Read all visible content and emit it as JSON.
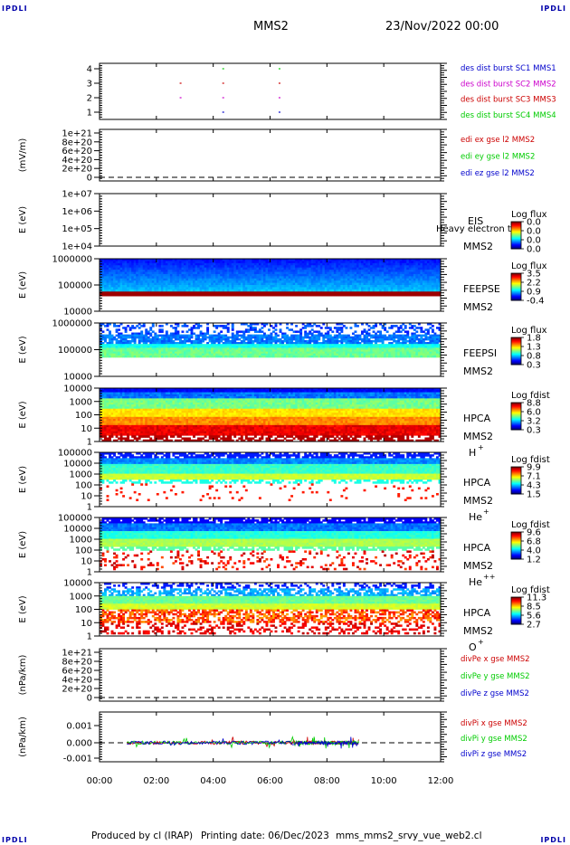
{
  "corner_label": "IPDLI",
  "header": {
    "mission": "MMS2",
    "date": "23/Nov/2022 00:00"
  },
  "footer": {
    "producer": "Produced by cl (IRAP)",
    "printing": "Printing date: 06/Dec/2023",
    "file": "mms_mms2_srvy_vue_web2.cl"
  },
  "time_axis": {
    "ticks": [
      "00:00",
      "02:00",
      "04:00",
      "06:00",
      "08:00",
      "10:00",
      "12:00"
    ]
  },
  "colors": {
    "blue": "#0000cc",
    "magenta": "#cc00cc",
    "red": "#cc0000",
    "green": "#00cc00"
  },
  "chart_data": [
    {
      "type": "scatter",
      "id": "burst",
      "yticks": [
        "4",
        "3",
        "2",
        "1"
      ],
      "legend": [
        {
          "text": "des dist burst SC1 MMS1",
          "color": "#0000cc"
        },
        {
          "text": "des dist burst SC2 MMS2",
          "color": "#cc00cc"
        },
        {
          "text": "des dist burst SC3 MMS3",
          "color": "#cc0000"
        },
        {
          "text": "des dist burst SC4 MMS4",
          "color": "#00cc00"
        }
      ]
    },
    {
      "type": "line",
      "id": "edi",
      "ylabel": "(mV/m)",
      "yticks": [
        "1e+21",
        "8e+20",
        "6e+20",
        "4e+20",
        "2e+20",
        "0"
      ],
      "legend": [
        {
          "text": "edi ex gse l2 MMS2",
          "color": "#cc0000"
        },
        {
          "text": "edi ey gse l2 MMS2",
          "color": "#00cc00"
        },
        {
          "text": "edi ez gse l2 MMS2",
          "color": "#0000cc"
        }
      ]
    },
    {
      "type": "heatmap",
      "id": "eis",
      "ylabel": "E (eV)",
      "yticks": [
        "1e+07",
        "1e+06",
        "1e+05",
        "1e+04"
      ],
      "instrument": "EIS",
      "extra": "Heavy electron to",
      "sc": "MMS2",
      "cbar_title": "Log flux",
      "cbar_ticks": [
        "0.0",
        "0.0",
        "0.0",
        "0.0"
      ]
    },
    {
      "type": "heatmap",
      "id": "feepse",
      "ylabel": "E (eV)",
      "yticks": [
        "1000000",
        "100000",
        "10000"
      ],
      "instrument": "FEEPSE",
      "sc": "MMS2",
      "cbar_title": "Log flux",
      "cbar_ticks": [
        "3.5",
        "2.2",
        "0.9",
        "-0.4"
      ]
    },
    {
      "type": "heatmap",
      "id": "feepsi",
      "ylabel": "E (eV)",
      "yticks": [
        "1000000",
        "100000",
        "10000"
      ],
      "instrument": "FEEPSI",
      "sc": "MMS2",
      "cbar_title": "Log flux",
      "cbar_ticks": [
        "1.8",
        "1.3",
        "0.8",
        "0.3"
      ]
    },
    {
      "type": "heatmap",
      "id": "hpca_h",
      "ylabel": "E (eV)",
      "yticks": [
        "10000",
        "1000",
        "100",
        "10",
        "1"
      ],
      "instrument": "HPCA",
      "sc": "MMS2",
      "species": "H",
      "charge": "+",
      "cbar_title": "Log fdist",
      "cbar_ticks": [
        "8.8",
        "6.0",
        "3.2",
        "0.3"
      ]
    },
    {
      "type": "heatmap",
      "id": "hpca_he",
      "ylabel": "E (eV)",
      "yticks": [
        "100000",
        "10000",
        "1000",
        "100",
        "10",
        "1"
      ],
      "instrument": "HPCA",
      "sc": "MMS2",
      "species": "He",
      "charge": "+",
      "cbar_title": "Log fdist",
      "cbar_ticks": [
        "9.9",
        "7.1",
        "4.3",
        "1.5"
      ]
    },
    {
      "type": "heatmap",
      "id": "hpca_hepp",
      "ylabel": "E (eV)",
      "yticks": [
        "100000",
        "10000",
        "1000",
        "100",
        "10",
        "1"
      ],
      "instrument": "HPCA",
      "sc": "MMS2",
      "species": "He",
      "charge": "++",
      "cbar_title": "Log fdist",
      "cbar_ticks": [
        "9.6",
        "6.8",
        "4.0",
        "1.2"
      ]
    },
    {
      "type": "heatmap",
      "id": "hpca_o",
      "ylabel": "E (eV)",
      "yticks": [
        "10000",
        "1000",
        "100",
        "10",
        "1"
      ],
      "instrument": "HPCA",
      "sc": "MMS2",
      "species": "O",
      "charge": "+",
      "cbar_title": "Log fdist",
      "cbar_ticks": [
        "11.3",
        "8.5",
        "5.6",
        "2.7"
      ]
    },
    {
      "type": "line",
      "id": "divpe",
      "ylabel": "(nPa/km)",
      "yticks": [
        "1e+21",
        "8e+20",
        "6e+20",
        "4e+20",
        "2e+20",
        "0"
      ],
      "legend": [
        {
          "text": "divPe x gse MMS2",
          "color": "#cc0000"
        },
        {
          "text": "divPe y gse MMS2",
          "color": "#00cc00"
        },
        {
          "text": "divPe z gse MMS2",
          "color": "#0000cc"
        }
      ]
    },
    {
      "type": "line",
      "id": "divpi",
      "ylabel": "(nPa/km)",
      "yticks": [
        "0.001",
        "0.000",
        "-0.001"
      ],
      "legend": [
        {
          "text": "divPi x gse MMS2",
          "color": "#cc0000"
        },
        {
          "text": "divPi y gse MMS2",
          "color": "#00cc00"
        },
        {
          "text": "divPi z gse MMS2",
          "color": "#0000cc"
        }
      ]
    }
  ]
}
